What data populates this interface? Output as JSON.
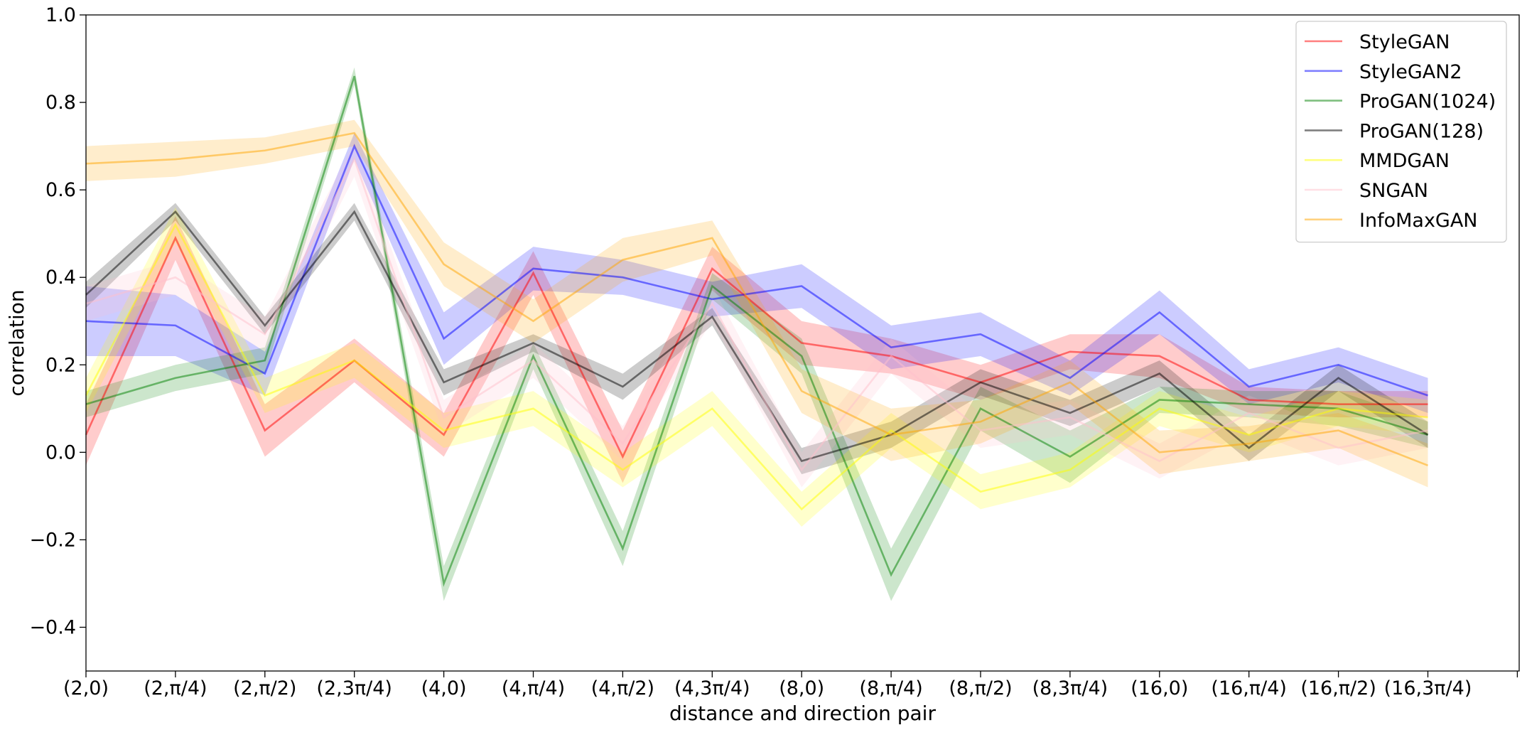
{
  "chart_data": {
    "type": "line",
    "title": "",
    "xlabel": "distance and direction pair",
    "ylabel": "correlation",
    "ylim": [
      -0.5,
      1.0
    ],
    "y_ticks": [
      -0.4,
      -0.2,
      0.0,
      0.2,
      0.4,
      0.6,
      0.8,
      1.0
    ],
    "y_tick_labels": [
      "−0.4",
      "−0.2",
      "0.0",
      "0.2",
      "0.4",
      "0.6",
      "0.8",
      "1.0"
    ],
    "categories": [
      "(2,0)",
      "(2,π/4)",
      "(2,π/2)",
      "(2,3π/4)",
      "(4,0)",
      "(4,π/4)",
      "(4,π/2)",
      "(4,3π/4)",
      "(8,0)",
      "(8,π/4)",
      "(8,π/2)",
      "(8,3π/4)",
      "(16,0)",
      "(16,π/4)",
      "(16,π/2)",
      "(16,3π/4)"
    ],
    "legend_position": "top-right",
    "grid": false,
    "series": [
      {
        "name": "StyleGAN",
        "color": "#ff0000",
        "values": [
          0.04,
          0.49,
          0.05,
          0.21,
          0.04,
          0.41,
          -0.01,
          0.42,
          0.25,
          0.22,
          0.16,
          0.23,
          0.22,
          0.12,
          0.11,
          0.11
        ],
        "band": [
          0.07,
          0.05,
          0.06,
          0.05,
          0.05,
          0.05,
          0.06,
          0.05,
          0.05,
          0.04,
          0.04,
          0.04,
          0.05,
          0.03,
          0.03,
          0.03
        ]
      },
      {
        "name": "StyleGAN2",
        "color": "#0000ff",
        "values": [
          0.3,
          0.29,
          0.18,
          0.7,
          0.26,
          0.42,
          0.4,
          0.35,
          0.38,
          0.24,
          0.27,
          0.17,
          0.32,
          0.15,
          0.2,
          0.13
        ],
        "band": [
          0.08,
          0.07,
          0.05,
          0.03,
          0.06,
          0.05,
          0.04,
          0.04,
          0.05,
          0.05,
          0.05,
          0.04,
          0.05,
          0.04,
          0.04,
          0.04
        ]
      },
      {
        "name": "ProGAN(1024)",
        "color": "#008000",
        "values": [
          0.11,
          0.17,
          0.21,
          0.86,
          -0.3,
          0.22,
          -0.22,
          0.38,
          0.22,
          -0.28,
          0.1,
          -0.01,
          0.12,
          0.11,
          0.1,
          0.04
        ],
        "band": [
          0.03,
          0.03,
          0.03,
          0.02,
          0.04,
          0.03,
          0.04,
          0.03,
          0.04,
          0.06,
          0.05,
          0.06,
          0.03,
          0.03,
          0.04,
          0.03
        ]
      },
      {
        "name": "ProGAN(128)",
        "color": "#000000",
        "values": [
          0.36,
          0.55,
          0.29,
          0.55,
          0.16,
          0.25,
          0.15,
          0.31,
          -0.02,
          0.04,
          0.16,
          0.09,
          0.18,
          0.01,
          0.17,
          0.04
        ],
        "band": [
          0.03,
          0.02,
          0.02,
          0.02,
          0.03,
          0.02,
          0.03,
          0.02,
          0.03,
          0.03,
          0.03,
          0.03,
          0.03,
          0.03,
          0.03,
          0.03
        ]
      },
      {
        "name": "MMDGAN",
        "color": "#ffff00",
        "values": [
          0.13,
          0.52,
          0.13,
          0.21,
          0.05,
          0.1,
          -0.04,
          0.1,
          -0.13,
          0.05,
          -0.09,
          -0.04,
          0.1,
          0.04,
          0.1,
          0.08
        ],
        "band": [
          0.04,
          0.04,
          0.04,
          0.04,
          0.04,
          0.04,
          0.04,
          0.04,
          0.04,
          0.04,
          0.04,
          0.04,
          0.04,
          0.04,
          0.04,
          0.04
        ]
      },
      {
        "name": "SNGAN",
        "color": "#ffc0cb",
        "values": [
          0.34,
          0.4,
          0.27,
          0.67,
          0.08,
          0.21,
          0.02,
          0.34,
          -0.04,
          0.22,
          0.05,
          0.08,
          -0.02,
          0.09,
          0.01,
          0.05
        ],
        "band": [
          0.04,
          0.04,
          0.04,
          0.04,
          0.04,
          0.04,
          0.04,
          0.04,
          0.04,
          0.04,
          0.04,
          0.04,
          0.04,
          0.04,
          0.04,
          0.04
        ]
      },
      {
        "name": "InfoMaxGAN",
        "color": "#ffa500",
        "values": [
          0.66,
          0.67,
          0.69,
          0.73,
          0.43,
          0.3,
          0.44,
          0.49,
          0.14,
          0.04,
          0.07,
          0.16,
          0.0,
          0.02,
          0.05,
          -0.03
        ],
        "band": [
          0.04,
          0.04,
          0.03,
          0.03,
          0.05,
          0.05,
          0.05,
          0.04,
          0.05,
          0.06,
          0.05,
          0.05,
          0.05,
          0.04,
          0.04,
          0.05
        ]
      }
    ]
  }
}
